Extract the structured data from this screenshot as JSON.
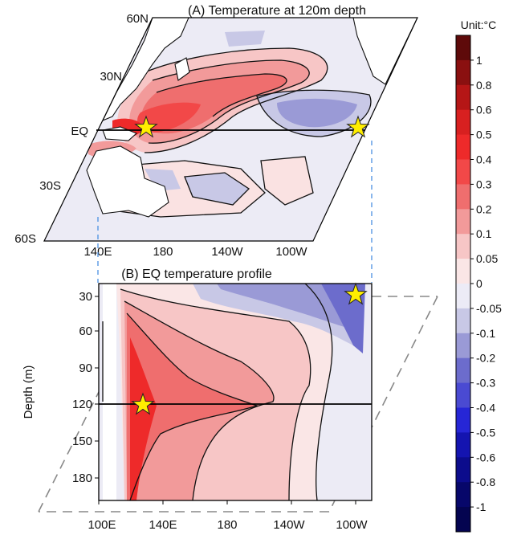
{
  "panel_a": {
    "title": "(A) Temperature at 120m depth",
    "lat_labels": [
      "60N",
      "30N",
      "EQ",
      "30S",
      "60S"
    ],
    "lon_labels": [
      "140E",
      "180",
      "140W",
      "100W"
    ]
  },
  "panel_b": {
    "title": "(B) EQ temperature profile",
    "ylabel": "Depth (m)",
    "depth_ticks": [
      "30",
      "60",
      "90",
      "120",
      "150",
      "180"
    ],
    "lon_labels": [
      "100E",
      "140E",
      "180",
      "140W",
      "100W"
    ],
    "highlight_depth": 120
  },
  "colorbar": {
    "unit": "Unit:°C",
    "labels": [
      "1",
      "0.8",
      "0.6",
      "0.5",
      "0.4",
      "0.3",
      "0.2",
      "0.1",
      "0.05",
      "0",
      "-0.05",
      "-0.1",
      "-0.2",
      "-0.3",
      "-0.4",
      "-0.5",
      "-0.6",
      "-0.8",
      "-1"
    ],
    "colors": [
      "#5e0a0a",
      "#8a1010",
      "#b51616",
      "#d82020",
      "#ee2a2a",
      "#f24848",
      "#ef6e6e",
      "#f29a9a",
      "#f7c6c6",
      "#fae6e6",
      "#ecebf6",
      "#c8c8e6",
      "#9a9ad6",
      "#6c6ccc",
      "#4a4ad2",
      "#2626d6",
      "#1414b0",
      "#0c0c8c",
      "#07076a",
      "#040450"
    ]
  },
  "colors": {
    "star": "#ffee00",
    "frame": "#000000",
    "guide_blue": "#4a90e2",
    "guide_gray": "#888888"
  }
}
